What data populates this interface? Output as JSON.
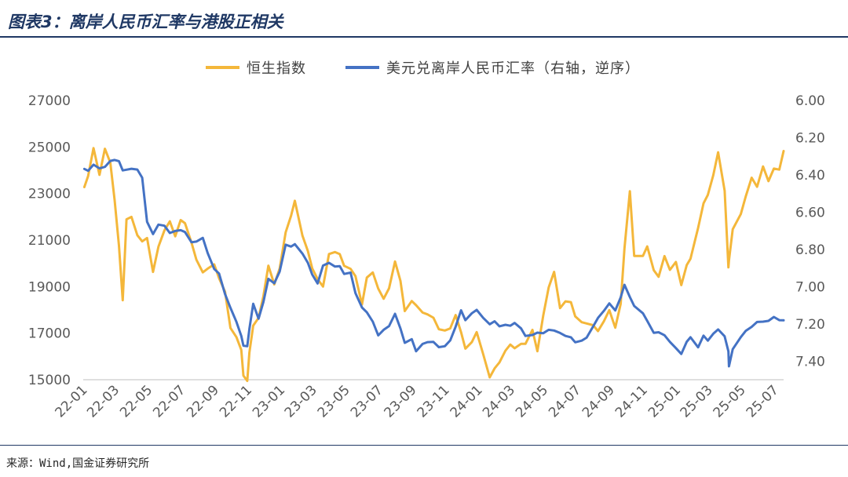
{
  "source": "来源：Wind,国金证券研究所",
  "chart_data": {
    "type": "line",
    "title": "图表3：离岸人民币汇率与港股正相关",
    "legend_position": "top",
    "grid": false,
    "x_range": [
      "2022-01-01",
      "2025-07-18"
    ],
    "x_tick_labels": [
      "22-01",
      "22-03",
      "22-05",
      "22-07",
      "22-09",
      "22-11",
      "23-01",
      "23-03",
      "23-05",
      "23-07",
      "23-09",
      "23-11",
      "24-01",
      "24-03",
      "24-05",
      "24-07",
      "24-09",
      "24-11",
      "25-01",
      "25-03",
      "25-05",
      "25-07"
    ],
    "y_left": {
      "ticks": [
        "27000",
        "25000",
        "23000",
        "21000",
        "19000",
        "17000",
        "15000"
      ],
      "range": [
        15000,
        27000
      ]
    },
    "y_right": {
      "ticks": [
        "6.00",
        "6.20",
        "6.40",
        "6.60",
        "6.80",
        "7.00",
        "7.20",
        "7.40"
      ],
      "range": [
        6.0,
        7.5
      ],
      "reversed": true
    },
    "x": [
      "2022-01-03",
      "2022-01-10",
      "2022-01-20",
      "2022-01-31",
      "2022-02-10",
      "2022-02-20",
      "2022-02-28",
      "2022-03-08",
      "2022-03-15",
      "2022-03-22",
      "2022-03-31",
      "2022-04-11",
      "2022-04-20",
      "2022-04-29",
      "2022-05-10",
      "2022-05-20",
      "2022-05-31",
      "2022-06-10",
      "2022-06-20",
      "2022-06-30",
      "2022-07-08",
      "2022-07-20",
      "2022-07-29",
      "2022-08-10",
      "2022-08-19",
      "2022-08-31",
      "2022-09-09",
      "2022-09-20",
      "2022-09-30",
      "2022-10-11",
      "2022-10-20",
      "2022-10-24",
      "2022-10-31",
      "2022-11-04",
      "2022-11-11",
      "2022-11-21",
      "2022-11-30",
      "2022-12-09",
      "2022-12-20",
      "2022-12-30",
      "2023-01-10",
      "2023-01-20",
      "2023-01-27",
      "2023-02-10",
      "2023-02-20",
      "2023-02-28",
      "2023-03-10",
      "2023-03-20",
      "2023-03-31",
      "2023-04-11",
      "2023-04-20",
      "2023-04-28",
      "2023-05-10",
      "2023-05-19",
      "2023-05-31",
      "2023-06-09",
      "2023-06-20",
      "2023-06-30",
      "2023-07-10",
      "2023-07-20",
      "2023-07-31",
      "2023-08-10",
      "2023-08-18",
      "2023-08-31",
      "2023-09-08",
      "2023-09-20",
      "2023-09-29",
      "2023-10-10",
      "2023-10-20",
      "2023-10-31",
      "2023-11-10",
      "2023-11-20",
      "2023-11-30",
      "2023-12-08",
      "2023-12-20",
      "2023-12-29",
      "2024-01-10",
      "2024-01-22",
      "2024-01-31",
      "2024-02-09",
      "2024-02-20",
      "2024-02-29",
      "2024-03-08",
      "2024-03-20",
      "2024-03-28",
      "2024-04-10",
      "2024-04-19",
      "2024-04-30",
      "2024-05-10",
      "2024-05-20",
      "2024-05-31",
      "2024-06-10",
      "2024-06-20",
      "2024-06-28",
      "2024-07-10",
      "2024-07-19",
      "2024-07-31",
      "2024-08-09",
      "2024-08-20",
      "2024-08-30",
      "2024-09-10",
      "2024-09-20",
      "2024-09-27",
      "2024-10-07",
      "2024-10-15",
      "2024-10-31",
      "2024-11-08",
      "2024-11-20",
      "2024-11-29",
      "2024-12-10",
      "2024-12-20",
      "2024-12-31",
      "2025-01-10",
      "2025-01-20",
      "2025-01-27",
      "2025-02-10",
      "2025-02-20",
      "2025-02-28",
      "2025-03-10",
      "2025-03-19",
      "2025-03-31",
      "2025-04-07",
      "2025-04-08",
      "2025-04-15",
      "2025-04-30",
      "2025-05-09",
      "2025-05-20",
      "2025-05-30",
      "2025-06-10",
      "2025-06-20",
      "2025-06-30",
      "2025-07-10",
      "2025-07-18"
    ],
    "series": [
      {
        "name": "恒生指数",
        "axis": "left",
        "color": "#f4b73a",
        "values": [
          23274,
          23746,
          24952,
          23802,
          24924,
          24327,
          22713,
          20765,
          18415,
          21889,
          21997,
          21208,
          20944,
          21089,
          19633,
          20717,
          21415,
          21806,
          21163,
          21860,
          21725,
          20890,
          20156,
          19610,
          19773,
          19954,
          19362,
          18781,
          17223,
          16832,
          16280,
          15180,
          14950,
          16161,
          17326,
          17655,
          18597,
          19901,
          19094,
          19781,
          21331,
          22045,
          22689,
          21190,
          20529,
          19786,
          19320,
          19000,
          20400,
          20485,
          20397,
          19895,
          19762,
          19450,
          18234,
          19389,
          19607,
          18916,
          18479,
          18928,
          20079,
          19248,
          17950,
          18382,
          18202,
          17885,
          17809,
          17664,
          17172,
          17112,
          17203,
          17778,
          17043,
          16334,
          16613,
          17047,
          16097,
          15100,
          15485,
          15746,
          16247,
          16511,
          16353,
          16543,
          16541,
          17139,
          16224,
          17763,
          18964,
          19636,
          18079,
          18367,
          18335,
          17719,
          17472,
          17417,
          17344,
          17090,
          17511,
          17989,
          17234,
          18258,
          20632,
          23099,
          20318,
          20317,
          20728,
          19705,
          19424,
          20311,
          19720,
          20060,
          19064,
          19926,
          20197,
          21522,
          22576,
          22941,
          23783,
          24771,
          23120,
          19828,
          20128,
          21466,
          22119,
          22868,
          23681,
          23290,
          24162,
          23530,
          24072,
          24028,
          24826
        ]
      },
      {
        "name": "美元兑离岸人民币汇率（右轴，逆序）",
        "axis": "right",
        "color": "#4472c4",
        "values": [
          6.368,
          6.378,
          6.345,
          6.365,
          6.357,
          6.325,
          6.32,
          6.326,
          6.376,
          6.372,
          6.367,
          6.371,
          6.415,
          6.652,
          6.718,
          6.667,
          6.673,
          6.712,
          6.701,
          6.697,
          6.707,
          6.762,
          6.758,
          6.738,
          6.82,
          6.905,
          6.93,
          7.04,
          7.114,
          7.189,
          7.265,
          7.317,
          7.32,
          7.228,
          7.092,
          7.172,
          7.082,
          6.958,
          6.982,
          6.919,
          6.775,
          6.785,
          6.772,
          6.823,
          6.872,
          6.935,
          6.983,
          6.887,
          6.872,
          6.892,
          6.89,
          6.932,
          6.925,
          7.035,
          7.112,
          7.138,
          7.188,
          7.262,
          7.232,
          7.212,
          7.146,
          7.225,
          7.302,
          7.282,
          7.347,
          7.308,
          7.298,
          7.297,
          7.325,
          7.32,
          7.289,
          7.215,
          7.127,
          7.18,
          7.143,
          7.125,
          7.168,
          7.202,
          7.186,
          7.213,
          7.205,
          7.21,
          7.195,
          7.225,
          7.265,
          7.26,
          7.247,
          7.25,
          7.232,
          7.236,
          7.249,
          7.265,
          7.272,
          7.299,
          7.29,
          7.274,
          7.214,
          7.168,
          7.13,
          7.09,
          7.128,
          7.058,
          6.99,
          7.056,
          7.104,
          7.143,
          7.184,
          7.248,
          7.245,
          7.261,
          7.297,
          7.33,
          7.362,
          7.296,
          7.272,
          7.326,
          7.263,
          7.29,
          7.253,
          7.23,
          7.267,
          7.348,
          7.428,
          7.336,
          7.271,
          7.238,
          7.216,
          7.19,
          7.188,
          7.184,
          7.163,
          7.18,
          7.181
        ]
      }
    ]
  }
}
